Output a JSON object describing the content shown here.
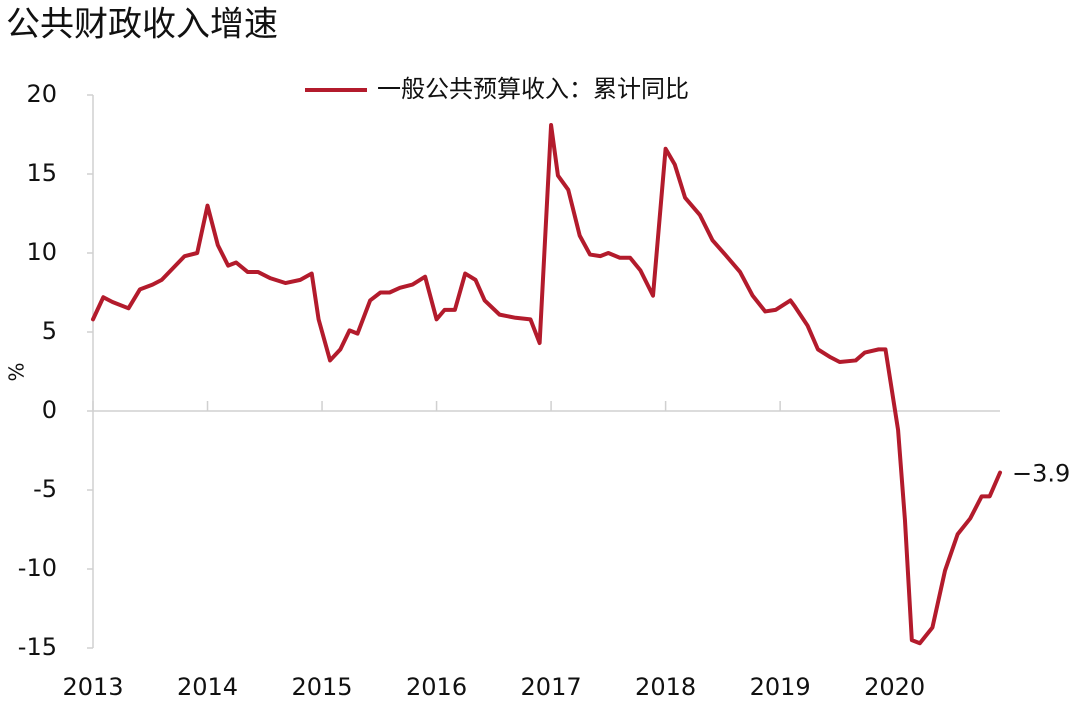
{
  "chart_data": {
    "type": "line",
    "title": "公共财政收入增速",
    "y_label": "%",
    "x": [
      2013.0,
      2013.09,
      2013.17,
      2013.31,
      2013.41,
      2013.52,
      2013.6,
      2013.72,
      2013.8,
      2013.91,
      2014.0,
      2014.09,
      2014.18,
      2014.25,
      2014.35,
      2014.44,
      2014.55,
      2014.68,
      2014.81,
      2014.91,
      2014.97,
      2015.07,
      2015.16,
      2015.24,
      2015.31,
      2015.42,
      2015.51,
      2015.59,
      2015.68,
      2015.79,
      2015.9,
      2016.0,
      2016.07,
      2016.16,
      2016.25,
      2016.34,
      2016.42,
      2016.55,
      2016.69,
      2016.82,
      2016.9,
      2017.0,
      2017.06,
      2017.15,
      2017.25,
      2017.34,
      2017.43,
      2017.5,
      2017.6,
      2017.69,
      2017.78,
      2017.89,
      2018.0,
      2018.08,
      2018.17,
      2018.3,
      2018.41,
      2018.52,
      2018.65,
      2018.76,
      2018.87,
      2018.96,
      2019.09,
      2019.13,
      2019.24,
      2019.33,
      2019.44,
      2019.52,
      2019.66,
      2019.74,
      2019.86,
      2019.92,
      2020.03,
      2020.09,
      2020.15,
      2020.22,
      2020.33,
      2020.44,
      2020.55,
      2020.66,
      2020.76,
      2020.83,
      2020.92
    ],
    "series": [
      {
        "name": "一般公共预算收入：累计同比",
        "color": "#b31b2c",
        "values": [
          5.8,
          7.2,
          6.9,
          6.5,
          7.7,
          8.0,
          8.3,
          9.2,
          9.8,
          10.0,
          13.0,
          10.5,
          9.2,
          9.4,
          8.8,
          8.8,
          8.4,
          8.1,
          8.3,
          8.7,
          5.8,
          3.2,
          3.9,
          5.1,
          4.9,
          7.0,
          7.5,
          7.5,
          7.8,
          8.0,
          8.5,
          5.8,
          6.4,
          6.4,
          8.7,
          8.3,
          7.0,
          6.1,
          5.9,
          5.8,
          4.3,
          18.1,
          14.9,
          14.0,
          11.1,
          9.9,
          9.8,
          10.0,
          9.7,
          9.7,
          8.9,
          7.3,
          16.6,
          15.6,
          13.5,
          12.4,
          10.8,
          9.9,
          8.8,
          7.3,
          6.3,
          6.4,
          7.0,
          6.6,
          5.4,
          3.9,
          3.4,
          3.1,
          3.2,
          3.7,
          3.9,
          3.9,
          -1.2,
          -6.9,
          -14.5,
          -14.7,
          -13.7,
          -10.1,
          -7.8,
          -6.8,
          -5.4,
          -5.4,
          -3.9
        ]
      }
    ],
    "annotations": [
      {
        "text": "−3.9",
        "x": 2020.92,
        "y": -3.9
      }
    ],
    "xlim": [
      2013,
      2020.92
    ],
    "xticks": [
      2013,
      2014,
      2015,
      2016,
      2017,
      2018,
      2019,
      2020
    ],
    "ylim": [
      -15,
      20
    ],
    "yticks": [
      20,
      15,
      10,
      5,
      0,
      -5,
      -10,
      -15
    ],
    "legend": "top"
  }
}
